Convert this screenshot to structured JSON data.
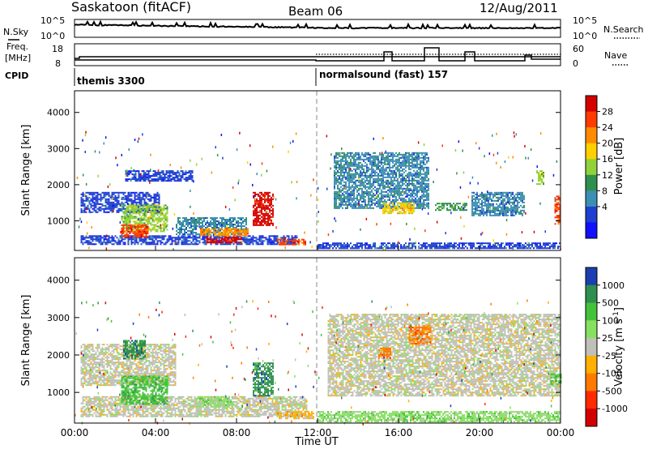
{
  "header": {
    "title": "Saskatoon (fitACF)",
    "beam": "Beam 06",
    "date": "12/Aug/2011"
  },
  "left_labels": {
    "nsky": "N.Sky",
    "freq_line1": "Freq.",
    "freq_line2": "[MHz]",
    "cpid": "CPID"
  },
  "right_labels": {
    "nsearch": "N.Search",
    "nave": "Nave"
  },
  "cpid_programs": [
    "themis 3300",
    "normalsound (fast) 157"
  ],
  "noise_panel": {
    "left_ticks": [
      "10^5",
      "10^0"
    ],
    "right_ticks": [
      "10^5",
      "10^0"
    ]
  },
  "freq_panel": {
    "left_ticks": [
      "18",
      "8"
    ],
    "right_ticks": [
      "60",
      "0"
    ]
  },
  "power_colorbar": {
    "label": "Power [dB]",
    "ticks": [
      "28",
      "24",
      "20",
      "16",
      "12",
      "8",
      "4"
    ],
    "colors": [
      "#d40000",
      "#ff3b00",
      "#ff8c00",
      "#ffd000",
      "#8fd23a",
      "#2f8f4e",
      "#3c8fb4",
      "#1f3fd0",
      "#1010ff"
    ]
  },
  "velocity_colorbar": {
    "label": "Velocity [m s^-1]",
    "ticks": [
      "1000",
      "500",
      "100",
      "25",
      "-25",
      "-100",
      "-500",
      "-1000"
    ],
    "colors": [
      "#1b3fb0",
      "#2f8f4e",
      "#44c23a",
      "#88e060",
      "#c0c0b8",
      "#ffb000",
      "#ff7a00",
      "#ff2a00",
      "#d40000"
    ]
  },
  "chart_data": [
    {
      "type": "heatmap",
      "panel": "power",
      "ylabel": "Slant Range [km]",
      "yticks": [
        1000,
        2000,
        3000,
        4000
      ],
      "ylim": [
        180,
        4600
      ],
      "xlim_hours": [
        0,
        24
      ],
      "patches": [
        {
          "t0": 0.3,
          "t1": 11.0,
          "r0": 350,
          "r1": 600,
          "c": 7
        },
        {
          "t0": 0.3,
          "t1": 4.2,
          "r0": 1250,
          "r1": 1800,
          "c": 7
        },
        {
          "t0": 2.3,
          "t1": 4.6,
          "r0": 700,
          "r1": 1450,
          "c": 4
        },
        {
          "t0": 2.3,
          "t1": 3.6,
          "r0": 550,
          "r1": 900,
          "c": 1
        },
        {
          "t0": 5.0,
          "t1": 8.5,
          "r0": 650,
          "r1": 1100,
          "c": 6
        },
        {
          "t0": 6.2,
          "t1": 8.6,
          "r0": 620,
          "r1": 800,
          "c": 2
        },
        {
          "t0": 6.5,
          "t1": 8.2,
          "r0": 420,
          "r1": 560,
          "c": 0
        },
        {
          "t0": 8.8,
          "t1": 9.8,
          "r0": 900,
          "r1": 1800,
          "c": 0
        },
        {
          "t0": 10.0,
          "t1": 11.4,
          "r0": 350,
          "r1": 500,
          "c": 1
        },
        {
          "t0": 2.5,
          "t1": 5.8,
          "r0": 2100,
          "r1": 2400,
          "c": 7
        },
        {
          "t0": 12.8,
          "t1": 17.5,
          "r0": 1350,
          "r1": 2900,
          "c": 6
        },
        {
          "t0": 15.2,
          "t1": 16.8,
          "r0": 1200,
          "r1": 1500,
          "c": 3
        },
        {
          "t0": 17.8,
          "t1": 19.4,
          "r0": 1300,
          "r1": 1500,
          "c": 5
        },
        {
          "t0": 19.6,
          "t1": 22.2,
          "r0": 1150,
          "r1": 1800,
          "c": 6
        },
        {
          "t0": 12.0,
          "t1": 24.0,
          "r0": 250,
          "r1": 400,
          "c": 7
        },
        {
          "t0": 22.8,
          "t1": 23.2,
          "r0": 2000,
          "r1": 2400,
          "c": 4
        },
        {
          "t0": 23.7,
          "t1": 24.0,
          "r0": 900,
          "r1": 1700,
          "c": 1
        }
      ]
    },
    {
      "type": "heatmap",
      "panel": "velocity",
      "ylabel": "Slant Range [km]",
      "yticks": [
        1000,
        2000,
        3000,
        4000
      ],
      "ylim": [
        180,
        4600
      ],
      "xlim_hours": [
        0,
        24
      ],
      "patches": [
        {
          "t0": 0.3,
          "t1": 11.5,
          "r0": 350,
          "r1": 900,
          "c": 4
        },
        {
          "t0": 0.3,
          "t1": 5.0,
          "r0": 1200,
          "r1": 2300,
          "c": 4
        },
        {
          "t0": 2.3,
          "t1": 4.6,
          "r0": 700,
          "r1": 1450,
          "c": 2
        },
        {
          "t0": 2.4,
          "t1": 3.5,
          "r0": 1900,
          "r1": 2400,
          "c": 1
        },
        {
          "t0": 6.0,
          "t1": 7.8,
          "r0": 600,
          "r1": 900,
          "c": 3
        },
        {
          "t0": 8.8,
          "t1": 9.8,
          "r0": 900,
          "r1": 1800,
          "c": 1
        },
        {
          "t0": 10.0,
          "t1": 11.8,
          "r0": 300,
          "r1": 500,
          "c": 5
        },
        {
          "t0": 12.5,
          "t1": 24.0,
          "r0": 900,
          "r1": 3100,
          "c": 4
        },
        {
          "t0": 15.0,
          "t1": 15.6,
          "r0": 1900,
          "r1": 2200,
          "c": 6
        },
        {
          "t0": 16.5,
          "t1": 17.6,
          "r0": 2300,
          "r1": 2800,
          "c": 6
        },
        {
          "t0": 12.0,
          "t1": 24.0,
          "r0": 200,
          "r1": 500,
          "c": 3
        },
        {
          "t0": 23.5,
          "t1": 24.0,
          "r0": 1200,
          "r1": 1500,
          "c": 2
        }
      ]
    }
  ],
  "time_axis": {
    "label": "Time UT",
    "ticks": [
      "00:00",
      "04:00",
      "08:00",
      "12:00",
      "16:00",
      "20:00",
      "00:00"
    ]
  }
}
